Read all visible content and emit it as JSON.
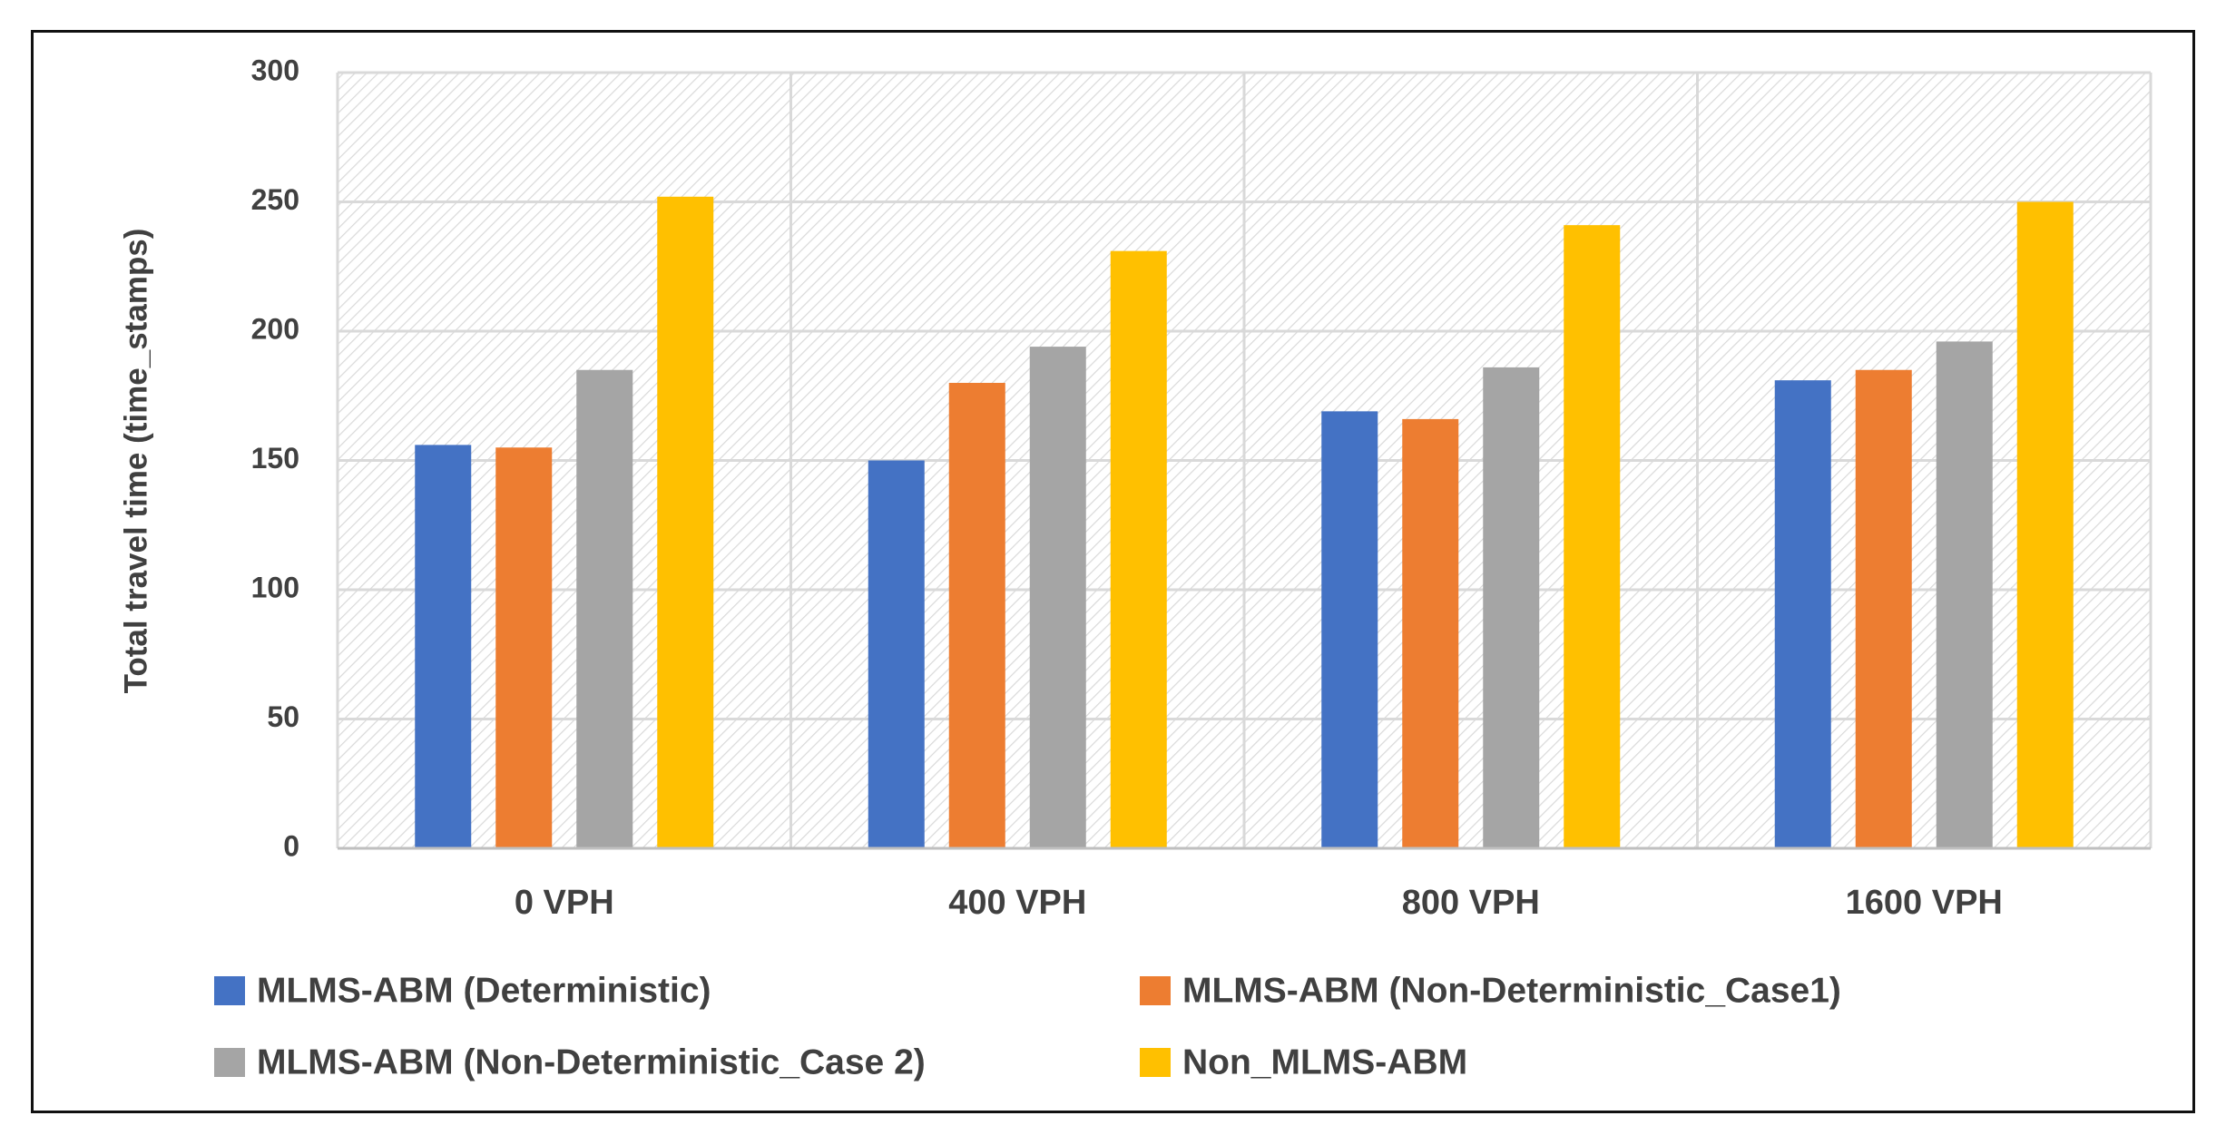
{
  "chart_data": {
    "type": "bar",
    "title": "",
    "xlabel": "",
    "ylabel": "Total travel time  (time_stamps)",
    "categories": [
      "0 VPH",
      "400 VPH",
      "800 VPH",
      "1600 VPH"
    ],
    "ylim": [
      0,
      300
    ],
    "yticks": [
      0,
      50,
      100,
      150,
      200,
      250,
      300
    ],
    "grid": true,
    "legend_position": "bottom",
    "series": [
      {
        "name": "MLMS-ABM (Deterministic)",
        "color": "#4472C4",
        "values": [
          156,
          150,
          169,
          181
        ]
      },
      {
        "name": "MLMS-ABM (Non-Deterministic_Case1)",
        "color": "#ED7D31",
        "values": [
          155,
          180,
          166,
          185
        ]
      },
      {
        "name": "MLMS-ABM (Non-Deterministic_Case 2)",
        "color": "#A5A5A5",
        "values": [
          185,
          194,
          186,
          196
        ]
      },
      {
        "name": "Non_MLMS-ABM",
        "color": "#FFC000",
        "values": [
          252,
          231,
          241,
          250
        ]
      }
    ]
  }
}
